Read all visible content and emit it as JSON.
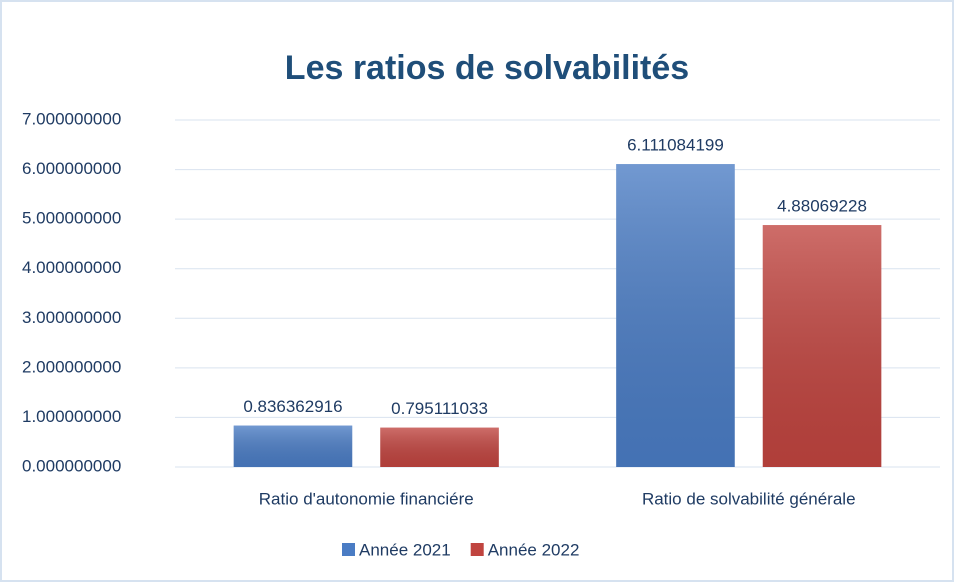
{
  "chart_data": {
    "type": "bar",
    "title": "Les ratios de solvabilités",
    "categories": [
      "Ratio d'autonomie financiére",
      "Ratio de solvabilité générale"
    ],
    "series": [
      {
        "name": "Année 2021",
        "color": "#4a7cc4",
        "values": [
          0.836362916,
          6.111084199
        ]
      },
      {
        "name": "Année 2022",
        "color": "#c0443f",
        "values": [
          0.795111033,
          4.88069228
        ]
      }
    ],
    "ylim": [
      0,
      7
    ],
    "yticks": [
      {
        "value": 0,
        "label": "0.000000000"
      },
      {
        "value": 1,
        "label": "1.000000000"
      },
      {
        "value": 2,
        "label": "2.000000000"
      },
      {
        "value": 3,
        "label": "3.000000000"
      },
      {
        "value": 4,
        "label": "4.000000000"
      },
      {
        "value": 5,
        "label": "5.000000000"
      },
      {
        "value": 6,
        "label": "6.000000000"
      },
      {
        "value": 7,
        "label": "7.000000000"
      }
    ],
    "grid": true,
    "legend": "bottom"
  }
}
